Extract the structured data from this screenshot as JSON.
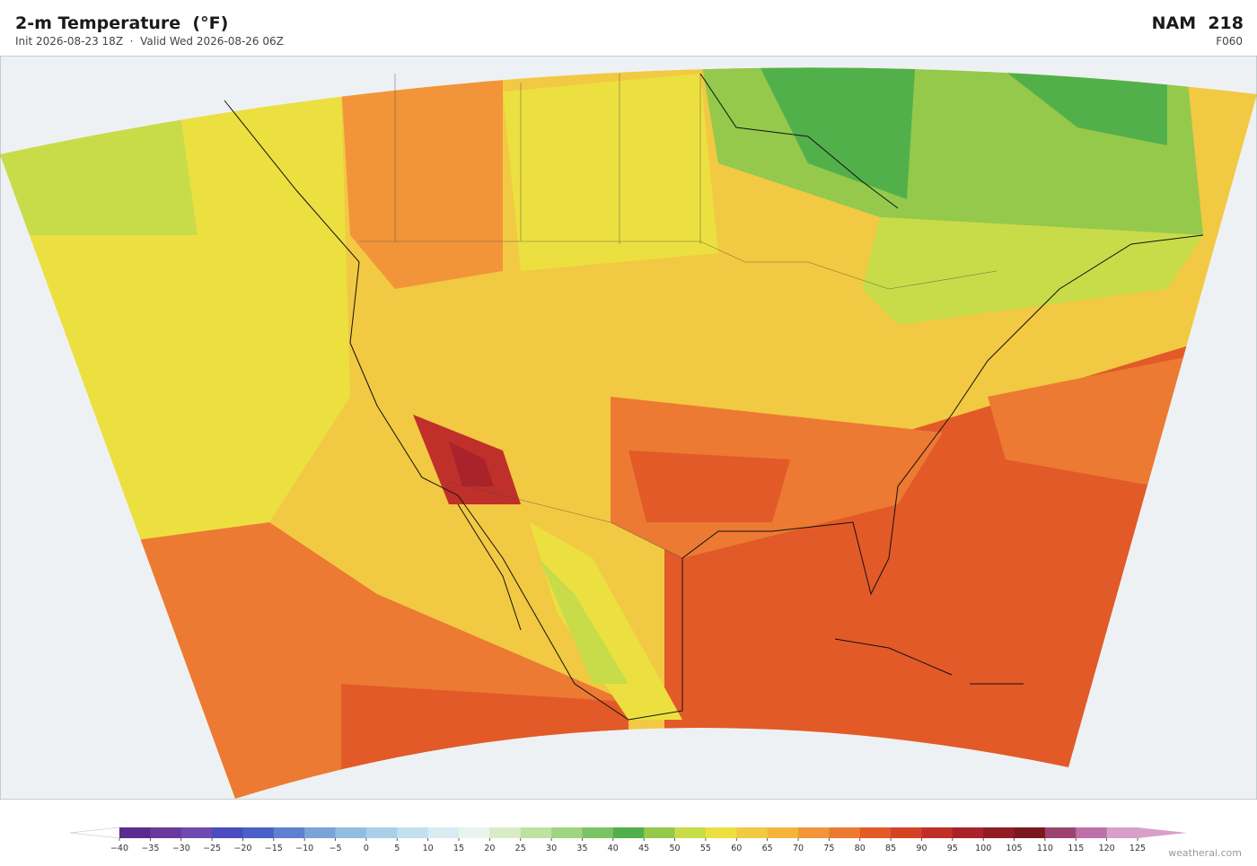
{
  "header": {
    "title": "2-m Temperature  (°F)",
    "subtitle": "Init 2026-08-23 18Z  ·  Valid Wed 2026-08-26 06Z",
    "model": "NAM  218",
    "forecast_hour": "F060"
  },
  "colorbar": {
    "ticks": [
      {
        "value": -40,
        "label": "−40"
      },
      {
        "value": -35,
        "label": "−35"
      },
      {
        "value": -30,
        "label": "−30"
      },
      {
        "value": -25,
        "label": "−25"
      },
      {
        "value": -20,
        "label": "−20"
      },
      {
        "value": -15,
        "label": "−15"
      },
      {
        "value": -10,
        "label": "−10"
      },
      {
        "value": -5,
        "label": "−5"
      },
      0,
      5,
      10,
      15,
      20,
      25,
      30,
      35,
      40,
      45,
      50,
      55,
      60,
      65,
      70,
      75,
      80,
      85,
      90,
      95,
      100,
      105,
      110,
      115,
      120,
      125
    ],
    "colors": [
      "#5b2c8f",
      "#6a3a9a",
      "#6e4ab0",
      "#4b4cc0",
      "#4a60c8",
      "#5f80d0",
      "#7ba3d8",
      "#92bde0",
      "#a9d0e8",
      "#c2e0ee",
      "#d8ecf2",
      "#e8f4ec",
      "#d8ecc8",
      "#bde3a0",
      "#9fd480",
      "#7cc463",
      "#52b04a",
      "#94c94c",
      "#c8dc4a",
      "#ece040",
      "#f2c942",
      "#f4b43c",
      "#f2953a",
      "#ec7a33",
      "#e25a28",
      "#d64324",
      "#c0302a",
      "#a8232a",
      "#921c24",
      "#7a1820",
      "#9c4470",
      "#c070a8",
      "#d8a0c8"
    ],
    "under_color": "#ffffff",
    "over_color": "#d8a0c8"
  },
  "footer": {
    "watermark": "weatherai.com"
  }
}
